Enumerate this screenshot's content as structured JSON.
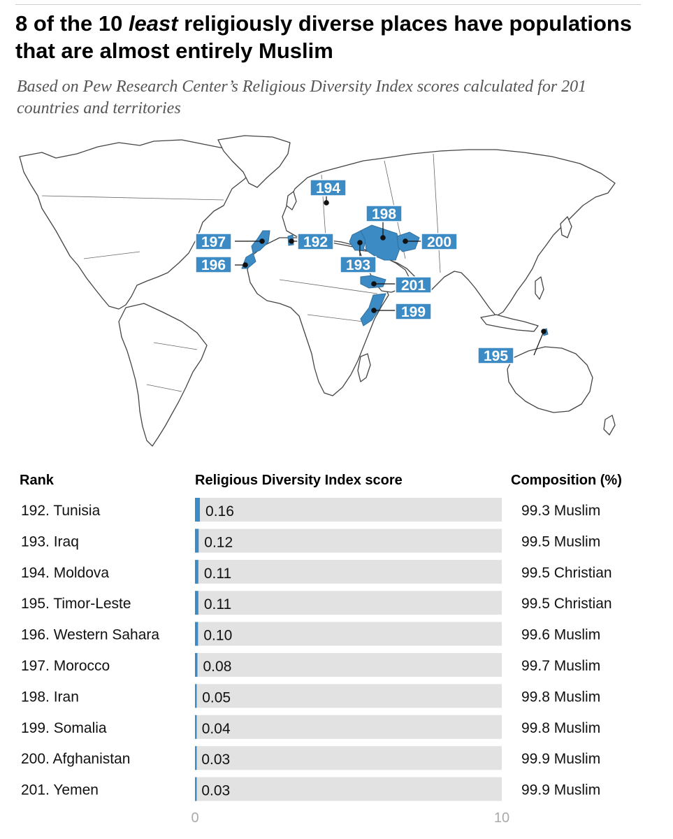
{
  "title_pre": "8 of the 10 ",
  "title_em": "least",
  "title_post": " religiously diverse places have populations that are almost entirely Muslim",
  "subtitle": "Based on Pew Research Center’s Religious Diversity Index scores calculated for 201 countries and territories",
  "colors": {
    "accent": "#3d8bc4",
    "track": "#e2e2e2",
    "land_stroke": "#444444"
  },
  "map": {
    "markers": [
      {
        "rank": "194",
        "country": "Moldova"
      },
      {
        "rank": "198",
        "country": "Iran"
      },
      {
        "rank": "197",
        "country": "Morocco"
      },
      {
        "rank": "192",
        "country": "Tunisia"
      },
      {
        "rank": "200",
        "country": "Afghanistan"
      },
      {
        "rank": "196",
        "country": "Western Sahara"
      },
      {
        "rank": "193",
        "country": "Iraq"
      },
      {
        "rank": "201",
        "country": "Yemen"
      },
      {
        "rank": "199",
        "country": "Somalia"
      },
      {
        "rank": "195",
        "country": "Timor-Leste"
      }
    ]
  },
  "table": {
    "rank_header": "Rank",
    "score_header": "Religious Diversity Index score",
    "composition_header": "Composition (%)"
  },
  "chart_data": {
    "type": "bar",
    "orientation": "horizontal",
    "categories": [
      "192. Tunisia",
      "193. Iraq",
      "194. Moldova",
      "195. Timor-Leste",
      "196. Western Sahara",
      "197. Morocco",
      "198. Iran",
      "199. Somalia",
      "200. Afghanistan",
      "201. Yemen"
    ],
    "values": [
      0.16,
      0.12,
      0.11,
      0.11,
      0.1,
      0.08,
      0.05,
      0.04,
      0.03,
      0.03
    ],
    "value_labels": [
      "0.16",
      "0.12",
      "0.11",
      "0.11",
      "0.10",
      "0.08",
      "0.05",
      "0.04",
      "0.03",
      "0.03"
    ],
    "composition": [
      "99.3 Muslim",
      "99.5 Muslim",
      "99.5 Christian",
      "99.5 Christian",
      "99.6 Muslim",
      "99.7 Muslim",
      "99.8 Muslim",
      "99.8 Muslim",
      "99.9 Muslim",
      "99.9 Muslim"
    ],
    "xlim": [
      0,
      10
    ],
    "x_ticks": [
      "0",
      "10"
    ],
    "grid": false
  }
}
